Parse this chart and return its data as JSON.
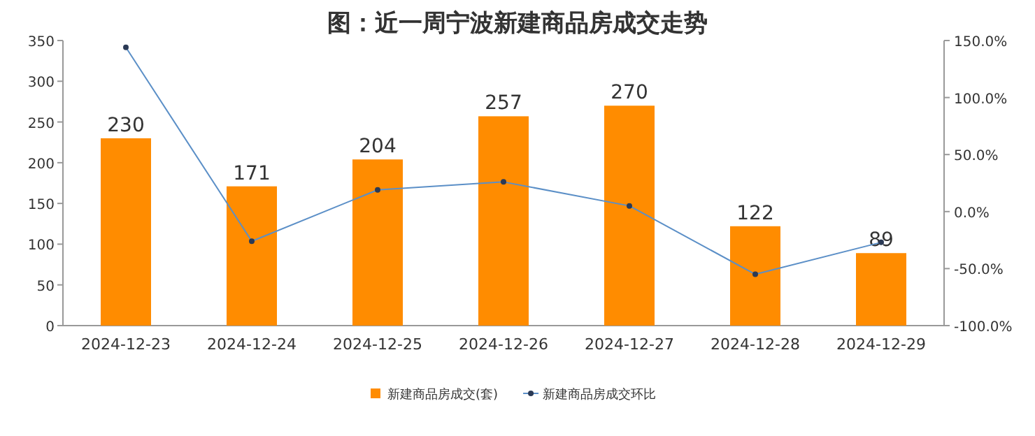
{
  "chart_data": {
    "type": "bar",
    "title": "图：近一周宁波新建商品房成交走势",
    "categories": [
      "2024-12-23",
      "2024-12-24",
      "2024-12-25",
      "2024-12-26",
      "2024-12-27",
      "2024-12-28",
      "2024-12-29"
    ],
    "series": [
      {
        "name": "新建商品房成交(套)",
        "color": "#ff8c00",
        "values": [
          230,
          171,
          204,
          257,
          270,
          122,
          89
        ],
        "value_labels": [
          "230",
          "171",
          "204",
          "257",
          "270",
          "122",
          "89"
        ]
      },
      {
        "name": "新建商品房成交环比",
        "type": "line",
        "axis": "y2",
        "color": "#5b8fc7",
        "values": [
          144,
          -26,
          19,
          26,
          5,
          -55,
          -27
        ]
      }
    ],
    "ylim": [
      0,
      350
    ],
    "yticks": [
      0,
      50,
      100,
      150,
      200,
      250,
      300,
      350
    ],
    "y2lim": [
      -100,
      150
    ],
    "y2ticks": [
      {
        "value": -100,
        "label": "-100.0%"
      },
      {
        "value": -50,
        "label": "-50.0%"
      },
      {
        "value": 0,
        "label": "0.0%"
      },
      {
        "value": 50,
        "label": "50.0%"
      },
      {
        "value": 100,
        "label": "100.0%"
      },
      {
        "value": 150,
        "label": "150.0%"
      }
    ],
    "legend": "bottom",
    "marker": "circle",
    "grid": false
  }
}
